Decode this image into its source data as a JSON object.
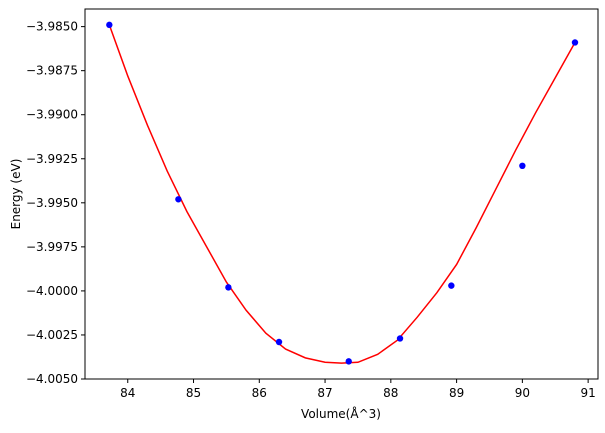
{
  "chart_data": {
    "type": "scatter",
    "title": "",
    "xlabel": "Volume(Å^3)",
    "ylabel": "Energy (eV)",
    "xlim": [
      83.35,
      91.15
    ],
    "ylim": [
      -4.005,
      -3.984
    ],
    "xticks": [
      84,
      85,
      86,
      87,
      88,
      89,
      90,
      91
    ],
    "xtick_labels": [
      "84",
      "85",
      "86",
      "87",
      "88",
      "89",
      "90",
      "91"
    ],
    "yticks": [
      -3.985,
      -3.9875,
      -3.99,
      -3.9925,
      -3.995,
      -3.9975,
      -4.0,
      -4.0025,
      -4.005
    ],
    "ytick_labels": [
      "−3.9850",
      "−3.9875",
      "−3.9900",
      "−3.9925",
      "−3.9950",
      "−3.9975",
      "−4.0000",
      "−4.0025",
      "−4.0050"
    ],
    "grid": false,
    "legend": false,
    "series": [
      {
        "kind": "points",
        "color": "#0000ff",
        "x": [
          83.72,
          84.77,
          85.53,
          86.3,
          87.36,
          88.14,
          88.92,
          90.0,
          90.8
        ],
        "y": [
          -3.9849,
          -3.9948,
          -3.9998,
          -4.0029,
          -4.004,
          -4.0027,
          -3.9997,
          -3.9929,
          -3.9859
        ]
      },
      {
        "kind": "fit-curve",
        "color": "#ff0000",
        "x": [
          83.72,
          84.0,
          84.3,
          84.6,
          84.9,
          85.2,
          85.5,
          85.8,
          86.1,
          86.4,
          86.7,
          87.0,
          87.25,
          87.5,
          87.8,
          88.1,
          88.4,
          88.7,
          89.0,
          89.3,
          89.6,
          89.9,
          90.2,
          90.5,
          90.8
        ],
        "y": [
          -3.9849,
          -3.9878,
          -3.9906,
          -3.9932,
          -3.9955,
          -3.9975,
          -3.9995,
          -4.0011,
          -4.0024,
          -4.0033,
          -4.0038,
          -4.00405,
          -4.0041,
          -4.00405,
          -4.0036,
          -4.0028,
          -4.0015,
          -4.0001,
          -3.9985,
          -3.9964,
          -3.9942,
          -3.992,
          -3.9899,
          -3.9879,
          -3.9859
        ]
      }
    ]
  }
}
